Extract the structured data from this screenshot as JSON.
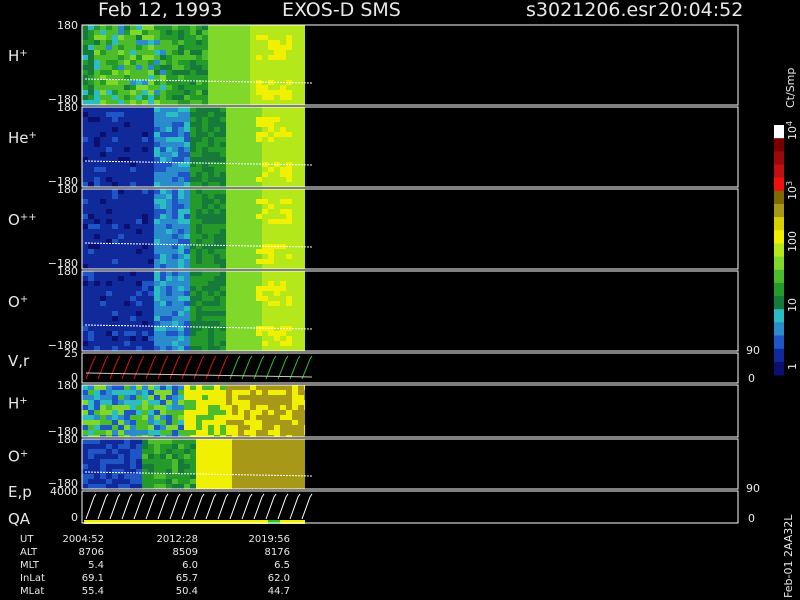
{
  "header": {
    "date": "Feb 12, 1993",
    "instrument": "EXOS-D SMS",
    "file": "s3021206.esr",
    "time": "20:04:52"
  },
  "panels": [
    {
      "label": {
        "base": "H",
        "sup": "+"
      },
      "left_ticks": [
        "180",
        "−180"
      ]
    },
    {
      "label": {
        "base": "He",
        "sup": "+"
      },
      "left_ticks": [
        "180",
        "−180"
      ]
    },
    {
      "label": {
        "base": "O",
        "sup": "++"
      },
      "left_ticks": [
        "180",
        "−180"
      ]
    },
    {
      "label": {
        "base": "O",
        "sup": "+"
      },
      "left_ticks": [
        "180",
        "−180"
      ]
    },
    {
      "label": {
        "base": "V,r"
      },
      "left_ticks": [
        "25",
        "0"
      ],
      "right_ticks": [
        "90",
        "0"
      ]
    },
    {
      "label": {
        "base": "H",
        "sup": "+"
      },
      "left_ticks": [
        "180",
        "−180"
      ]
    },
    {
      "label": {
        "base": "O",
        "sup": "+"
      },
      "left_ticks": [
        "180",
        "−180"
      ]
    },
    {
      "label": {
        "base": "E,p"
      },
      "left_ticks": [
        "4000",
        "0"
      ],
      "right_ticks": [
        "90",
        "0"
      ]
    }
  ],
  "qa_label": "QA",
  "colorbar": {
    "unit": "Ct/Smp",
    "labels": [
      {
        "base": "10",
        "sup": "4"
      },
      {
        "base": "10",
        "sup": "3"
      },
      {
        "base": "100"
      },
      {
        "base": "10"
      },
      {
        "base": "1"
      }
    ]
  },
  "ephemeris": {
    "rows": [
      [
        "UT",
        "2004:52",
        "2012:28",
        "2019:56"
      ],
      [
        "ALT",
        "8706",
        "8509",
        "8176"
      ],
      [
        "MLT",
        "5.4",
        "6.0",
        "6.5"
      ],
      [
        "InLat",
        "69.1",
        "65.7",
        "62.0"
      ],
      [
        "MLat",
        "55.4",
        "50.4",
        "44.7"
      ]
    ]
  },
  "footer_code": "Feb-01 2AA32L"
}
